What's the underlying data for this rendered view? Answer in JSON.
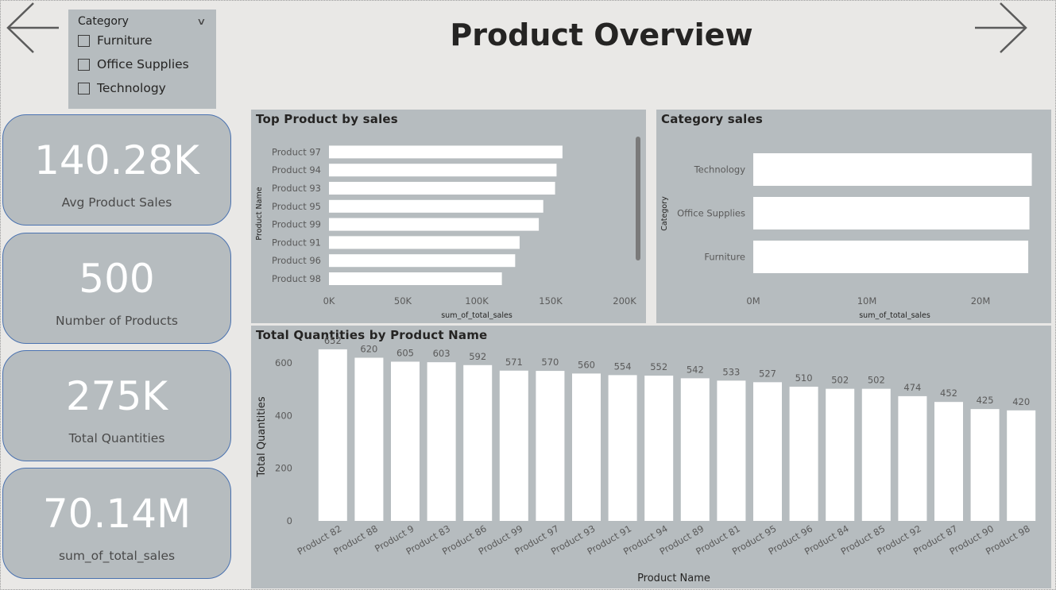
{
  "title": "Product Overview",
  "nav": {
    "back_icon": "arrow-left-icon",
    "forward_icon": "arrow-right-icon"
  },
  "slicer": {
    "title": "Category",
    "options": [
      "Furniture",
      "Office Supplies",
      "Technology"
    ]
  },
  "kpis": [
    {
      "value": "140.28K",
      "label": "Avg Product Sales"
    },
    {
      "value": "500",
      "label": "Number of Products"
    },
    {
      "value": "275K",
      "label": "Total Quantities"
    },
    {
      "value": "70.14M",
      "label": "sum_of_total_sales"
    }
  ],
  "colors": {
    "background": "#e9e8e6",
    "visual_bg": "#b6bcbf",
    "bar": "#ffffff",
    "card_border": "#4a72b0"
  },
  "chart_data": [
    {
      "type": "bar",
      "orientation": "horizontal",
      "title": "Top Product by sales",
      "xlabel": "sum_of_total_sales",
      "ylabel": "Product Name",
      "categories": [
        "Product 97",
        "Product 94",
        "Product 93",
        "Product 95",
        "Product 99",
        "Product 91",
        "Product 96",
        "Product 98"
      ],
      "values": [
        158000,
        154000,
        153000,
        145000,
        142000,
        129000,
        126000,
        117000
      ],
      "xlim": [
        0,
        200000
      ],
      "xticks": [
        "0K",
        "50K",
        "100K",
        "150K",
        "200K"
      ],
      "grid": false
    },
    {
      "type": "bar",
      "orientation": "horizontal",
      "title": "Category sales",
      "xlabel": "sum_of_total_sales",
      "ylabel": "Category",
      "categories": [
        "Technology",
        "Office Supplies",
        "Furniture"
      ],
      "values": [
        23500000,
        23300000,
        23200000
      ],
      "xlim": [
        0,
        24000000
      ],
      "xticks": [
        "0M",
        "10M",
        "20M"
      ],
      "grid": false
    },
    {
      "type": "bar",
      "orientation": "vertical",
      "title": "Total Quantities by Product Name",
      "xlabel": "Product Name",
      "ylabel": "Total Quantities",
      "categories": [
        "Product 82",
        "Product 88",
        "Product 9",
        "Product 83",
        "Product 86",
        "Product 99",
        "Product 97",
        "Product 93",
        "Product 91",
        "Product 94",
        "Product 89",
        "Product 81",
        "Product 95",
        "Product 96",
        "Product 84",
        "Product 85",
        "Product 92",
        "Product 87",
        "Product 90",
        "Product 98"
      ],
      "values": [
        652,
        620,
        605,
        603,
        592,
        571,
        570,
        560,
        554,
        552,
        542,
        533,
        527,
        510,
        502,
        502,
        474,
        452,
        425,
        420
      ],
      "ylim": [
        0,
        700
      ],
      "yticks": [
        0,
        200,
        400,
        600
      ],
      "data_labels": true,
      "grid": false
    }
  ]
}
